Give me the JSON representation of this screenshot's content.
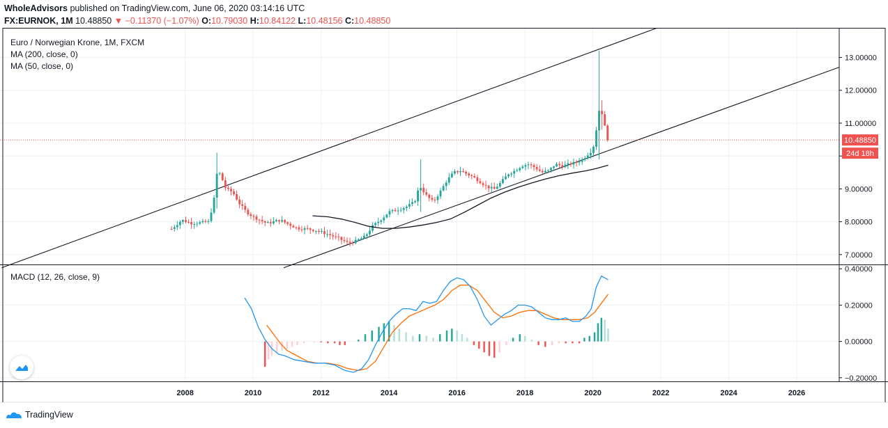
{
  "header": {
    "publisher": "WholeAdvisors",
    "published_text": " published on TradingView.com, June 06, 2020 03:14:16 UTC",
    "symbol": "FX:EURNOK, 1M",
    "last": "10.48850",
    "change_arrow": "▼",
    "change": "−0.11370 (−1.07%)",
    "o_label": "O:",
    "o_value": "10.79030",
    "h_label": "H:",
    "h_value": "10.84122",
    "l_label": "L:",
    "l_value": "10.48156",
    "c_label": "C:",
    "c_value": "10.48850"
  },
  "legend": {
    "title": "Euro / Norwegian Krone, 1M, FXCM",
    "ma200": "MA (200, close, 0)",
    "ma50": "MA (50, close, 0)",
    "macd": "MACD (12, 26, close, 9)"
  },
  "price_badge": "10.48850",
  "countdown_badge": "24d 18h",
  "footer": {
    "brand": "TradingView"
  },
  "colors": {
    "up": "#26a69a",
    "down": "#ef5350",
    "macd": "#2196f3",
    "signal": "#ff6d00",
    "line": "#131722"
  },
  "chart_data": [
    {
      "type": "candlestick",
      "title": "Euro / Norwegian Krone, 1M, FXCM",
      "x_ticks": [
        "2008",
        "2010",
        "2012",
        "2014",
        "2016",
        "2018",
        "2020",
        "2022",
        "2024",
        "2026"
      ],
      "y_ticks": [
        "7.00000",
        "8.00000",
        "9.00000",
        "10.00000",
        "11.00000",
        "12.00000",
        "13.00000"
      ],
      "ylim": [
        6.7,
        13.9
      ],
      "xlim": [
        2002.55,
        2027.25
      ],
      "last_price": 10.4885,
      "close_path": [
        [
          2007.6,
          7.78
        ],
        [
          2007.9,
          8.05
        ],
        [
          2008.2,
          7.95
        ],
        [
          2008.5,
          7.98
        ],
        [
          2008.7,
          8.0
        ],
        [
          2008.85,
          8.7
        ],
        [
          2008.95,
          9.6
        ],
        [
          2009.05,
          9.4
        ],
        [
          2009.2,
          9.0
        ],
        [
          2009.4,
          8.9
        ],
        [
          2009.6,
          8.55
        ],
        [
          2009.8,
          8.3
        ],
        [
          2010.0,
          8.15
        ],
        [
          2010.2,
          8.05
        ],
        [
          2010.4,
          7.95
        ],
        [
          2010.6,
          8.0
        ],
        [
          2010.8,
          8.05
        ],
        [
          2011.0,
          7.95
        ],
        [
          2011.3,
          7.8
        ],
        [
          2011.6,
          7.78
        ],
        [
          2011.9,
          7.72
        ],
        [
          2012.2,
          7.62
        ],
        [
          2012.5,
          7.5
        ],
        [
          2012.8,
          7.35
        ],
        [
          2013.0,
          7.4
        ],
        [
          2013.3,
          7.55
        ],
        [
          2013.5,
          7.85
        ],
        [
          2013.8,
          8.1
        ],
        [
          2014.0,
          8.3
        ],
        [
          2014.2,
          8.35
        ],
        [
          2014.5,
          8.45
        ],
        [
          2014.75,
          8.6
        ],
        [
          2014.9,
          9.1
        ],
        [
          2015.1,
          8.8
        ],
        [
          2015.3,
          8.6
        ],
        [
          2015.5,
          8.9
        ],
        [
          2015.7,
          9.25
        ],
        [
          2015.9,
          9.5
        ],
        [
          2016.1,
          9.55
        ],
        [
          2016.3,
          9.45
        ],
        [
          2016.5,
          9.35
        ],
        [
          2016.7,
          9.2
        ],
        [
          2016.9,
          9.05
        ],
        [
          2017.1,
          9.0
        ],
        [
          2017.3,
          9.2
        ],
        [
          2017.5,
          9.45
        ],
        [
          2017.7,
          9.55
        ],
        [
          2017.9,
          9.7
        ],
        [
          2018.1,
          9.75
        ],
        [
          2018.3,
          9.65
        ],
        [
          2018.5,
          9.5
        ],
        [
          2018.7,
          9.55
        ],
        [
          2018.9,
          9.75
        ],
        [
          2019.1,
          9.7
        ],
        [
          2019.3,
          9.75
        ],
        [
          2019.5,
          9.8
        ],
        [
          2019.7,
          9.9
        ],
        [
          2019.9,
          10.1
        ],
        [
          2020.0,
          10.2
        ],
        [
          2020.1,
          10.8
        ],
        [
          2020.2,
          11.5
        ],
        [
          2020.3,
          11.2
        ],
        [
          2020.4,
          10.6
        ],
        [
          2020.45,
          10.4885
        ]
      ],
      "ma50": [
        [
          2011.75,
          8.18
        ],
        [
          2012.2,
          8.15
        ],
        [
          2012.6,
          8.08
        ],
        [
          2013.0,
          7.98
        ],
        [
          2013.4,
          7.86
        ],
        [
          2013.8,
          7.8
        ],
        [
          2014.2,
          7.8
        ],
        [
          2014.6,
          7.84
        ],
        [
          2015.0,
          7.9
        ],
        [
          2015.4,
          7.98
        ],
        [
          2015.8,
          8.08
        ],
        [
          2016.2,
          8.28
        ],
        [
          2016.6,
          8.5
        ],
        [
          2017.0,
          8.72
        ],
        [
          2017.4,
          8.9
        ],
        [
          2017.8,
          9.05
        ],
        [
          2018.2,
          9.18
        ],
        [
          2018.6,
          9.3
        ],
        [
          2019.0,
          9.4
        ],
        [
          2019.4,
          9.48
        ],
        [
          2019.8,
          9.55
        ],
        [
          2020.1,
          9.62
        ],
        [
          2020.45,
          9.72
        ]
      ],
      "trendlines": [
        {
          "name": "upper-channel",
          "from": [
            2002.6,
            6.6
          ],
          "to": [
            2021.9,
            13.9
          ]
        },
        {
          "name": "lower-channel",
          "from": [
            2010.9,
            6.6
          ],
          "to": [
            2027.25,
            12.7
          ]
        }
      ]
    },
    {
      "type": "histogram-line",
      "title": "MACD (12, 26, close, 9)",
      "y_ticks": [
        "0.40000",
        "0.20000",
        "0.00000",
        "−0.20000"
      ],
      "ylim": [
        -0.22,
        0.42
      ],
      "macd": [
        [
          2009.75,
          0.24
        ],
        [
          2009.95,
          0.18
        ],
        [
          2010.15,
          0.08
        ],
        [
          2010.35,
          0.01
        ],
        [
          2010.55,
          -0.04
        ],
        [
          2010.75,
          -0.07
        ],
        [
          2010.95,
          -0.08
        ],
        [
          2011.2,
          -0.1
        ],
        [
          2011.5,
          -0.11
        ],
        [
          2011.8,
          -0.12
        ],
        [
          2012.1,
          -0.12
        ],
        [
          2012.4,
          -0.13
        ],
        [
          2012.7,
          -0.16
        ],
        [
          2012.95,
          -0.17
        ],
        [
          2013.2,
          -0.15
        ],
        [
          2013.4,
          -0.1
        ],
        [
          2013.6,
          -0.02
        ],
        [
          2013.8,
          0.05
        ],
        [
          2014.0,
          0.11
        ],
        [
          2014.2,
          0.15
        ],
        [
          2014.4,
          0.18
        ],
        [
          2014.6,
          0.18
        ],
        [
          2014.8,
          0.17
        ],
        [
          2015.0,
          0.22
        ],
        [
          2015.2,
          0.21
        ],
        [
          2015.4,
          0.22
        ],
        [
          2015.6,
          0.28
        ],
        [
          2015.8,
          0.33
        ],
        [
          2016.0,
          0.35
        ],
        [
          2016.2,
          0.34
        ],
        [
          2016.4,
          0.3
        ],
        [
          2016.6,
          0.23
        ],
        [
          2016.8,
          0.14
        ],
        [
          2017.0,
          0.09
        ],
        [
          2017.2,
          0.12
        ],
        [
          2017.4,
          0.15
        ],
        [
          2017.6,
          0.17
        ],
        [
          2017.8,
          0.2
        ],
        [
          2018.0,
          0.2
        ],
        [
          2018.2,
          0.19
        ],
        [
          2018.4,
          0.16
        ],
        [
          2018.6,
          0.13
        ],
        [
          2018.8,
          0.12
        ],
        [
          2019.0,
          0.12
        ],
        [
          2019.2,
          0.13
        ],
        [
          2019.4,
          0.11
        ],
        [
          2019.6,
          0.11
        ],
        [
          2019.8,
          0.14
        ],
        [
          2019.95,
          0.18
        ],
        [
          2020.1,
          0.3
        ],
        [
          2020.25,
          0.36
        ],
        [
          2020.45,
          0.34
        ]
      ],
      "signal": [
        [
          2010.4,
          0.09
        ],
        [
          2010.6,
          0.04
        ],
        [
          2010.8,
          -0.01
        ],
        [
          2011.0,
          -0.05
        ],
        [
          2011.3,
          -0.08
        ],
        [
          2011.6,
          -0.11
        ],
        [
          2011.9,
          -0.12
        ],
        [
          2012.2,
          -0.12
        ],
        [
          2012.5,
          -0.13
        ],
        [
          2012.8,
          -0.15
        ],
        [
          2013.1,
          -0.16
        ],
        [
          2013.35,
          -0.15
        ],
        [
          2013.6,
          -0.11
        ],
        [
          2013.85,
          -0.03
        ],
        [
          2014.1,
          0.05
        ],
        [
          2014.35,
          0.1
        ],
        [
          2014.6,
          0.14
        ],
        [
          2014.85,
          0.16
        ],
        [
          2015.1,
          0.18
        ],
        [
          2015.35,
          0.2
        ],
        [
          2015.6,
          0.23
        ],
        [
          2015.85,
          0.28
        ],
        [
          2016.1,
          0.31
        ],
        [
          2016.35,
          0.31
        ],
        [
          2016.6,
          0.28
        ],
        [
          2016.85,
          0.22
        ],
        [
          2017.1,
          0.16
        ],
        [
          2017.35,
          0.13
        ],
        [
          2017.6,
          0.14
        ],
        [
          2017.85,
          0.16
        ],
        [
          2018.1,
          0.17
        ],
        [
          2018.35,
          0.17
        ],
        [
          2018.6,
          0.15
        ],
        [
          2018.85,
          0.13
        ],
        [
          2019.1,
          0.12
        ],
        [
          2019.35,
          0.12
        ],
        [
          2019.6,
          0.12
        ],
        [
          2019.85,
          0.13
        ],
        [
          2020.05,
          0.16
        ],
        [
          2020.25,
          0.21
        ],
        [
          2020.45,
          0.26
        ]
      ],
      "histogram": [
        [
          2010.35,
          -0.14
        ],
        [
          2010.45,
          -0.1
        ],
        [
          2010.55,
          -0.08
        ],
        [
          2010.7,
          -0.06
        ],
        [
          2010.85,
          -0.05
        ],
        [
          2011.0,
          -0.04
        ],
        [
          2011.15,
          -0.03
        ],
        [
          2011.3,
          -0.02
        ],
        [
          2011.5,
          -0.01
        ],
        [
          2011.8,
          -0.005
        ],
        [
          2012.0,
          -0.005
        ],
        [
          2012.2,
          -0.01
        ],
        [
          2012.4,
          -0.01
        ],
        [
          2012.55,
          -0.02
        ],
        [
          2012.7,
          -0.02
        ],
        [
          2013.1,
          0.01
        ],
        [
          2013.3,
          0.04
        ],
        [
          2013.5,
          0.06
        ],
        [
          2013.7,
          0.08
        ],
        [
          2013.85,
          0.1
        ],
        [
          2014.0,
          0.11
        ],
        [
          2014.15,
          0.09
        ],
        [
          2014.3,
          0.07
        ],
        [
          2014.5,
          0.05
        ],
        [
          2014.7,
          0.03
        ],
        [
          2014.9,
          0.04
        ],
        [
          2015.1,
          0.03
        ],
        [
          2015.3,
          0.02
        ],
        [
          2015.5,
          0.04
        ],
        [
          2015.7,
          0.06
        ],
        [
          2015.85,
          0.07
        ],
        [
          2016.0,
          0.06
        ],
        [
          2016.15,
          0.04
        ],
        [
          2016.3,
          0.02
        ],
        [
          2016.5,
          -0.02
        ],
        [
          2016.65,
          -0.04
        ],
        [
          2016.8,
          -0.06
        ],
        [
          2016.95,
          -0.08
        ],
        [
          2017.1,
          -0.09
        ],
        [
          2017.25,
          -0.06
        ],
        [
          2017.45,
          -0.02
        ],
        [
          2017.65,
          0.02
        ],
        [
          2017.85,
          0.04
        ],
        [
          2018.0,
          0.03
        ],
        [
          2018.2,
          0.01
        ],
        [
          2018.4,
          -0.02
        ],
        [
          2018.6,
          -0.03
        ],
        [
          2018.8,
          -0.02
        ],
        [
          2019.0,
          -0.01
        ],
        [
          2019.2,
          -0.01
        ],
        [
          2019.4,
          -0.01
        ],
        [
          2019.6,
          -0.01
        ],
        [
          2019.75,
          0.02
        ],
        [
          2019.9,
          0.03
        ],
        [
          2020.05,
          0.05
        ],
        [
          2020.15,
          0.1
        ],
        [
          2020.25,
          0.13
        ],
        [
          2020.35,
          0.12
        ],
        [
          2020.45,
          0.07
        ]
      ]
    }
  ]
}
